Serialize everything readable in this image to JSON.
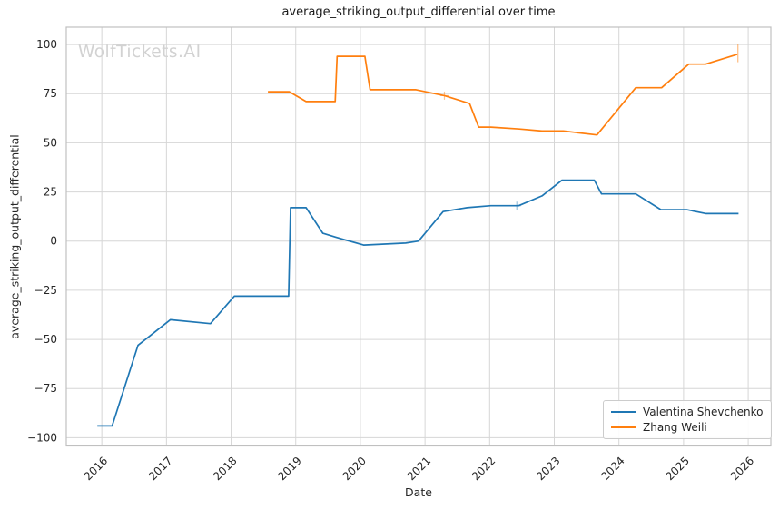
{
  "figure": {
    "watermark": "WolfTickets.AI"
  },
  "chart_data": {
    "type": "line",
    "title": "average_striking_output_differential over time",
    "xlabel": "Date",
    "ylabel": "average_striking_output_differential",
    "grid": true,
    "legend_position": "lower right",
    "xlim": [
      2015.45,
      2026.35
    ],
    "ylim": [
      -104.2,
      108.8
    ],
    "x_ticks": [
      {
        "v": 2016,
        "label": "2016"
      },
      {
        "v": 2017,
        "label": "2017"
      },
      {
        "v": 2018,
        "label": "2018"
      },
      {
        "v": 2019,
        "label": "2019"
      },
      {
        "v": 2020,
        "label": "2020"
      },
      {
        "v": 2021,
        "label": "2021"
      },
      {
        "v": 2022,
        "label": "2022"
      },
      {
        "v": 2023,
        "label": "2023"
      },
      {
        "v": 2024,
        "label": "2024"
      },
      {
        "v": 2025,
        "label": "2025"
      },
      {
        "v": 2026,
        "label": "2026"
      }
    ],
    "y_ticks": [
      {
        "v": -100,
        "label": "−100"
      },
      {
        "v": -75,
        "label": "−75"
      },
      {
        "v": -50,
        "label": "−50"
      },
      {
        "v": -25,
        "label": "−25"
      },
      {
        "v": 0,
        "label": "0"
      },
      {
        "v": 25,
        "label": "25"
      },
      {
        "v": 50,
        "label": "50"
      },
      {
        "v": 75,
        "label": "75"
      },
      {
        "v": 100,
        "label": "100"
      }
    ],
    "series": [
      {
        "name": "Valentina Shevchenko",
        "color": "#1f77b4",
        "points": [
          [
            2015.93,
            -94
          ],
          [
            2016.16,
            -94
          ],
          [
            2016.56,
            -53
          ],
          [
            2017.06,
            -40
          ],
          [
            2017.68,
            -42
          ],
          [
            2018.05,
            -28
          ],
          [
            2018.89,
            -28
          ],
          [
            2018.92,
            17
          ],
          [
            2019.16,
            17
          ],
          [
            2019.42,
            4
          ],
          [
            2019.62,
            2
          ],
          [
            2020.05,
            -2
          ],
          [
            2020.7,
            -1
          ],
          [
            2020.9,
            0
          ],
          [
            2021.28,
            15
          ],
          [
            2021.65,
            17
          ],
          [
            2022.02,
            18
          ],
          [
            2022.45,
            18
          ],
          [
            2022.81,
            23
          ],
          [
            2023.12,
            31
          ],
          [
            2023.62,
            31
          ],
          [
            2023.73,
            24
          ],
          [
            2024.26,
            24
          ],
          [
            2024.65,
            16
          ],
          [
            2025.05,
            16
          ],
          [
            2025.35,
            14
          ],
          [
            2025.85,
            14
          ]
        ]
      },
      {
        "name": "Zhang Weili",
        "color": "#ff7f0e",
        "points": [
          [
            2018.57,
            76
          ],
          [
            2018.9,
            76
          ],
          [
            2019.16,
            71
          ],
          [
            2019.61,
            71
          ],
          [
            2019.64,
            94
          ],
          [
            2020.07,
            94
          ],
          [
            2020.15,
            77
          ],
          [
            2020.86,
            77
          ],
          [
            2021.3,
            74
          ],
          [
            2021.69,
            70
          ],
          [
            2021.83,
            58
          ],
          [
            2022.02,
            58
          ],
          [
            2022.46,
            57
          ],
          [
            2022.81,
            56
          ],
          [
            2023.14,
            56
          ],
          [
            2023.66,
            54
          ],
          [
            2024.26,
            78
          ],
          [
            2024.66,
            78
          ],
          [
            2025.08,
            90
          ],
          [
            2025.34,
            90
          ],
          [
            2025.83,
            95
          ]
        ]
      }
    ],
    "point_markers": [
      {
        "series": 0,
        "shape": "plus",
        "x": 2022.42,
        "y": 18
      },
      {
        "series": 1,
        "shape": "plus",
        "x": 2021.3,
        "y": 74
      },
      {
        "series": 1,
        "shape": "vline",
        "x": 2025.84,
        "y1": 91,
        "y2": 100
      }
    ],
    "colors": {
      "series_blue": "#1f77b4",
      "series_orange": "#ff7f0e",
      "grid": "#d6d6d6",
      "spine": "#c0c0c0",
      "text": "#262626",
      "watermark": "#d2d2d2",
      "background": "#ffffff"
    }
  }
}
